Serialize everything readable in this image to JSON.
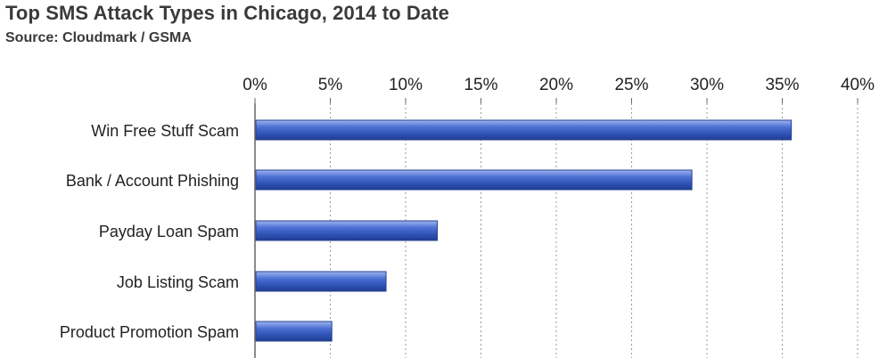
{
  "chart_data": {
    "type": "bar",
    "orientation": "horizontal",
    "title": "Top SMS Attack Types in Chicago, 2014 to Date",
    "subtitle": "Source: Cloudmark / GSMA",
    "xlabel": "",
    "ylabel": "",
    "categories": [
      "Win Free Stuff Scam",
      "Bank / Account Phishing",
      "Payday Loan Spam",
      "Job Listing Scam",
      "Product Promotion Spam"
    ],
    "values": [
      35.6,
      29.0,
      12.1,
      8.7,
      5.1
    ],
    "xlim": [
      0,
      40
    ],
    "xticks": [
      0,
      5,
      10,
      15,
      20,
      25,
      30,
      35,
      40
    ],
    "xtick_labels": [
      "0%",
      "5%",
      "10%",
      "15%",
      "20%",
      "25%",
      "30%",
      "35%",
      "40%"
    ],
    "axis_position": "top",
    "grid": "vertical dashed",
    "legend": "none",
    "bar_color": "#3f63c8"
  }
}
